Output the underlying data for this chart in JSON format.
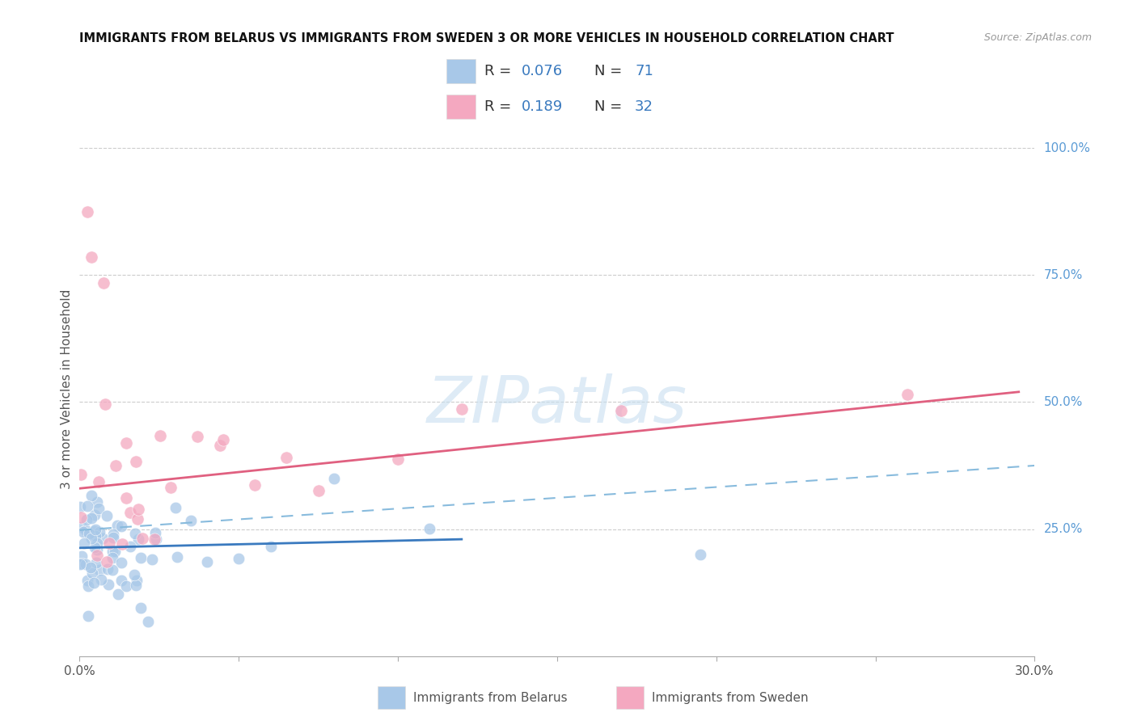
{
  "title": "IMMIGRANTS FROM BELARUS VS IMMIGRANTS FROM SWEDEN 3 OR MORE VEHICLES IN HOUSEHOLD CORRELATION CHART",
  "source": "Source: ZipAtlas.com",
  "ylabel": "3 or more Vehicles in Household",
  "x_min": 0.0,
  "x_max": 0.3,
  "y_min": 0.0,
  "y_max": 1.05,
  "x_tick_positions": [
    0.0,
    0.05,
    0.1,
    0.15,
    0.2,
    0.25,
    0.3
  ],
  "x_tick_labels": [
    "0.0%",
    "",
    "",
    "",
    "",
    "",
    "30.0%"
  ],
  "y_ticks_right": [
    0.25,
    0.5,
    0.75,
    1.0
  ],
  "y_tick_labels_right": [
    "25.0%",
    "50.0%",
    "75.0%",
    "100.0%"
  ],
  "legend_blue_R": "0.076",
  "legend_blue_N": "71",
  "legend_pink_R": "0.189",
  "legend_pink_N": "32",
  "scatter_blue_color": "#a8c8e8",
  "scatter_pink_color": "#f4a8c0",
  "scatter_blue_edge": "#ffffff",
  "scatter_pink_edge": "#ffffff",
  "trend_blue_solid_color": "#3a7abf",
  "trend_blue_dashed_color": "#88bbdd",
  "trend_pink_solid_color": "#e06080",
  "trend_blue_y0": 0.213,
  "trend_blue_y1": 0.23,
  "trend_dashed_y0": 0.248,
  "trend_dashed_y1": 0.375,
  "trend_pink_y0": 0.33,
  "trend_pink_y1": 0.52,
  "trend_pink_x1": 0.295,
  "watermark_text": "ZIPatlas",
  "watermark_color": "#c8dff0",
  "background_color": "#ffffff",
  "grid_color": "#cccccc",
  "label_blue_color": "#5b9bd5",
  "label_pink_color": "#e87090",
  "legend_R_color": "#333333",
  "legend_val_color": "#3a7abf",
  "legend_N_color": "#333333",
  "legend_num_color": "#3a7abf",
  "bottom_label_blue": "Immigrants from Belarus",
  "bottom_label_pink": "Immigrants from Sweden"
}
